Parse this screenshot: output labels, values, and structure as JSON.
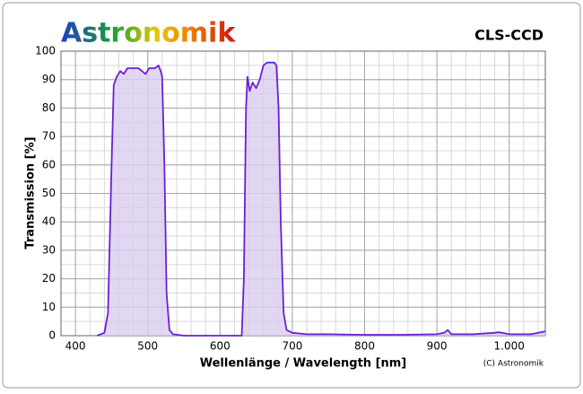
{
  "chart_data": {
    "type": "line",
    "brand": "Astronomik",
    "title": "CLS-CCD",
    "xlabel": "Wellenlänge / Wavelength [nm]",
    "ylabel": "Transmission [%]",
    "copyright": "(C) Astronomik",
    "xlim": [
      380,
      1050
    ],
    "ylim": [
      0,
      100
    ],
    "xticks": [
      400,
      500,
      600,
      700,
      800,
      900,
      {
        "value": 1000,
        "label": "1.000"
      }
    ],
    "yticks": [
      0,
      10,
      20,
      30,
      40,
      50,
      60,
      70,
      80,
      90,
      100
    ],
    "grid": true,
    "x": [
      430,
      440,
      445,
      450,
      453,
      457,
      462,
      467,
      472,
      480,
      487,
      492,
      497,
      502,
      510,
      515,
      518,
      520,
      523,
      526,
      530,
      535,
      550,
      600,
      630,
      633,
      636,
      638,
      641,
      645,
      650,
      655,
      660,
      665,
      670,
      675,
      678,
      681,
      684,
      688,
      692,
      700,
      720,
      750,
      800,
      850,
      900,
      910,
      915,
      920,
      950,
      980,
      985,
      990,
      1000,
      1030,
      1050
    ],
    "series": [
      {
        "color": "#6a1fd8",
        "fill": "#d9cdef",
        "values": [
          0,
          1,
          8,
          60,
          88,
          91,
          93,
          92,
          94,
          94,
          94,
          93,
          92,
          94,
          94,
          95,
          93,
          91,
          60,
          15,
          2,
          0.5,
          0,
          0,
          0,
          20,
          80,
          91,
          86,
          89,
          87,
          90,
          95,
          96,
          96,
          96,
          95,
          80,
          40,
          8,
          2,
          1,
          0.5,
          0.5,
          0.3,
          0.3,
          0.5,
          1,
          2,
          0.5,
          0.5,
          1,
          1.2,
          1,
          0.5,
          0.5,
          1.5
        ]
      }
    ]
  }
}
